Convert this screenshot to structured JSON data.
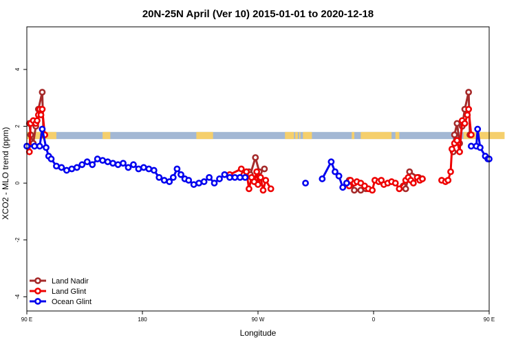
{
  "chart_data": {
    "type": "line",
    "title": "20N-25N April (Ver 10)   2015-01-01 to 2020-12-18",
    "xlabel": "Longitude",
    "ylabel": "XCO2 - MLO trend (ppm)",
    "xlim": [
      90,
      450
    ],
    "ylim": [
      -4.5,
      5.5
    ],
    "xticks": [
      {
        "value": 90,
        "label": "90 E"
      },
      {
        "value": 180,
        "label": "180"
      },
      {
        "value": 270,
        "label": "90 W"
      },
      {
        "value": 360,
        "label": "0"
      },
      {
        "value": 450,
        "label": "90 E"
      },
      {
        "value": 540,
        "label": "180"
      }
    ],
    "yticks": [
      -4,
      -2,
      0,
      2,
      4
    ],
    "grid": false,
    "legend_position": "bottom-left",
    "land_mask": {
      "y_range": [
        1.55,
        1.8
      ],
      "ocean_color": "#a3b8d4",
      "land_color": "#f5cf6c",
      "land_segments": [
        [
          90,
          113
        ],
        [
          149,
          155
        ],
        [
          222,
          235
        ],
        [
          291,
          298
        ],
        [
          299,
          301
        ],
        [
          302,
          303
        ],
        [
          305,
          312
        ],
        [
          343,
          345
        ],
        [
          350,
          374
        ],
        [
          377,
          380
        ],
        [
          430,
          462
        ]
      ]
    },
    "series": [
      {
        "name": "Land Nadir",
        "color": "#a52a2a",
        "points": [
          [
            92,
            2.1
          ],
          [
            93,
            1.7
          ],
          [
            95,
            1.4
          ],
          [
            97,
            2.0
          ],
          [
            99,
            2.6
          ],
          [
            102,
            3.2
          ],
          [
            103,
            1.7
          ],
          [
            261,
            0.3
          ],
          [
            263,
            0.4
          ],
          [
            264,
            0.3
          ],
          [
            268,
            0.9
          ],
          [
            271,
            0.4
          ],
          [
            275,
            0.5
          ],
          [
            341,
            0.1
          ],
          [
            343,
            -0.05
          ],
          [
            345,
            -0.25
          ],
          [
            350,
            -0.25
          ],
          [
            354,
            -0.2
          ],
          [
            383,
            -0.1
          ],
          [
            385,
            -0.2
          ],
          [
            388,
            0.4
          ],
          [
            395,
            0.2
          ],
          [
            398,
            0.15
          ],
          [
            422,
            1.1
          ],
          [
            423,
            1.7
          ],
          [
            425,
            2.1
          ],
          [
            427,
            1.4
          ],
          [
            429,
            2.0
          ],
          [
            431,
            2.6
          ],
          [
            434,
            3.2
          ],
          [
            435,
            1.7
          ]
        ]
      },
      {
        "name": "Land Glint",
        "color": "#ee0000",
        "points": [
          [
            92,
            1.1
          ],
          [
            93,
            2.1
          ],
          [
            95,
            2.2
          ],
          [
            97,
            2.1
          ],
          [
            98,
            2.2
          ],
          [
            99,
            2.4
          ],
          [
            100,
            2.6
          ],
          [
            101,
            2.4
          ],
          [
            102,
            2.6
          ],
          [
            104,
            1.7
          ],
          [
            248,
            0.3
          ],
          [
            257,
            0.5
          ],
          [
            259,
            0.3
          ],
          [
            261,
            0.4
          ],
          [
            263,
            -0.2
          ],
          [
            265,
            0.2
          ],
          [
            267,
            0.05
          ],
          [
            269,
            0.4
          ],
          [
            270,
            -0.05
          ],
          [
            272,
            0.2
          ],
          [
            274,
            -0.25
          ],
          [
            276,
            0.1
          ],
          [
            280,
            -0.2
          ],
          [
            341,
            -0.1
          ],
          [
            342,
            0.1
          ],
          [
            345,
            0.0
          ],
          [
            347,
            0.05
          ],
          [
            350,
            0.0
          ],
          [
            353,
            -0.1
          ],
          [
            356,
            -0.2
          ],
          [
            359,
            -0.25
          ],
          [
            361,
            0.1
          ],
          [
            364,
            0.05
          ],
          [
            366,
            0.1
          ],
          [
            368,
            -0.05
          ],
          [
            371,
            0.0
          ],
          [
            374,
            0.05
          ],
          [
            377,
            0.0
          ],
          [
            380,
            -0.2
          ],
          [
            385,
            0.1
          ],
          [
            387,
            0.2
          ],
          [
            389,
            0.1
          ],
          [
            391,
            0.0
          ],
          [
            394,
            0.2
          ],
          [
            396,
            0.1
          ],
          [
            398,
            0.15
          ],
          [
            413,
            0.1
          ],
          [
            416,
            0.05
          ],
          [
            418,
            0.1
          ],
          [
            420,
            0.4
          ],
          [
            421,
            1.2
          ],
          [
            423,
            1.4
          ],
          [
            425,
            1.5
          ],
          [
            427,
            1.1
          ],
          [
            429,
            2.2
          ],
          [
            431,
            2.1
          ],
          [
            433,
            2.4
          ],
          [
            434,
            2.6
          ],
          [
            436,
            1.7
          ]
        ]
      },
      {
        "name": "Ocean Glint",
        "color": "#0000ee",
        "points": [
          [
            90,
            1.3
          ],
          [
            96,
            1.3
          ],
          [
            100,
            1.3
          ],
          [
            102,
            1.9
          ],
          [
            105,
            1.25
          ],
          [
            107,
            0.95
          ],
          [
            109,
            0.85
          ],
          [
            113,
            0.6
          ],
          [
            117,
            0.55
          ],
          [
            121,
            0.45
          ],
          [
            125,
            0.5
          ],
          [
            129,
            0.55
          ],
          [
            133,
            0.65
          ],
          [
            137,
            0.75
          ],
          [
            141,
            0.65
          ],
          [
            145,
            0.85
          ],
          [
            149,
            0.8
          ],
          [
            153,
            0.75
          ],
          [
            157,
            0.7
          ],
          [
            161,
            0.65
          ],
          [
            165,
            0.7
          ],
          [
            169,
            0.55
          ],
          [
            173,
            0.65
          ],
          [
            177,
            0.5
          ],
          [
            181,
            0.55
          ],
          [
            185,
            0.5
          ],
          [
            189,
            0.45
          ],
          [
            193,
            0.2
          ],
          [
            197,
            0.1
          ],
          [
            201,
            0.05
          ],
          [
            204,
            0.2
          ],
          [
            207,
            0.5
          ],
          [
            210,
            0.3
          ],
          [
            213,
            0.15
          ],
          [
            216,
            0.1
          ],
          [
            220,
            -0.05
          ],
          [
            224,
            0.0
          ],
          [
            228,
            0.05
          ],
          [
            232,
            0.2
          ],
          [
            236,
            0.0
          ],
          [
            240,
            0.15
          ],
          [
            244,
            0.3
          ],
          [
            248,
            0.2
          ],
          [
            252,
            0.2
          ],
          [
            256,
            0.2
          ],
          [
            260,
            0.2
          ],
          [
            307,
            0.0
          ],
          [
            320,
            0.15
          ],
          [
            327,
            0.75
          ],
          [
            330,
            0.4
          ],
          [
            333,
            0.25
          ],
          [
            336,
            -0.15
          ],
          [
            339,
            0.0
          ],
          [
            436,
            1.3
          ],
          [
            440,
            1.3
          ],
          [
            441,
            1.9
          ],
          [
            443,
            1.25
          ],
          [
            447,
            0.95
          ],
          [
            449,
            0.85
          ],
          [
            450,
            0.85
          ]
        ]
      }
    ]
  }
}
